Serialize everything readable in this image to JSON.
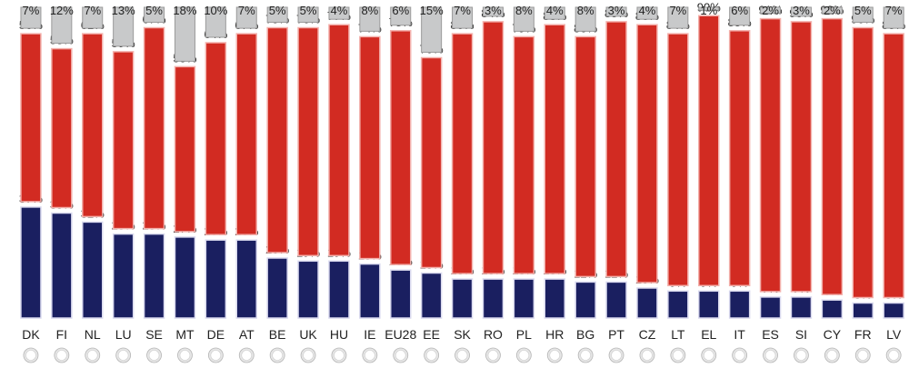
{
  "chart_data": {
    "type": "bar",
    "stacked": true,
    "categories": [
      "DK",
      "FI",
      "NL",
      "LU",
      "SE",
      "MT",
      "DE",
      "AT",
      "BE",
      "UK",
      "HU",
      "IE",
      "EU28",
      "EE",
      "SK",
      "RO",
      "PL",
      "HR",
      "BG",
      "PT",
      "CZ",
      "LT",
      "EL",
      "IT",
      "ES",
      "SI",
      "CY",
      "FR",
      "LV"
    ],
    "series": [
      {
        "color": "#1a1f60",
        "values": [
          37,
          35,
          32,
          28,
          28,
          27,
          26,
          26,
          20,
          19,
          19,
          18,
          16,
          15,
          13,
          13,
          13,
          13,
          12,
          12,
          10,
          9,
          9,
          9,
          7,
          7,
          6,
          5,
          5
        ]
      },
      {
        "color": "#d22b22",
        "values": [
          56,
          53,
          61,
          59,
          67,
          55,
          64,
          67,
          75,
          76,
          77,
          74,
          78,
          70,
          80,
          84,
          79,
          83,
          80,
          85,
          86,
          84,
          90,
          85,
          91,
          90,
          92,
          90,
          88
        ]
      },
      {
        "color": "#c8c9ca",
        "values": [
          7,
          12,
          7,
          13,
          5,
          18,
          10,
          7,
          5,
          5,
          4,
          8,
          6,
          15,
          7,
          3,
          8,
          4,
          8,
          3,
          4,
          7,
          1,
          6,
          2,
          3,
          2,
          5,
          7
        ]
      }
    ],
    "value_suffix": "%",
    "grid": false
  },
  "flag_icons": [
    "denmark-flag-icon",
    "finland-flag-icon",
    "netherlands-flag-icon",
    "luxembourg-flag-icon",
    "sweden-flag-icon",
    "malta-flag-icon",
    "germany-flag-icon",
    "austria-flag-icon",
    "belgium-flag-icon",
    "united-kingdom-flag-icon",
    "hungary-flag-icon",
    "ireland-flag-icon",
    "european-union-flag-icon",
    "estonia-flag-icon",
    "slovakia-flag-icon",
    "romania-flag-icon",
    "poland-flag-icon",
    "croatia-flag-icon",
    "bulgaria-flag-icon",
    "portugal-flag-icon",
    "czechia-flag-icon",
    "lithuania-flag-icon",
    "greece-flag-icon",
    "italy-flag-icon",
    "spain-flag-icon",
    "slovenia-flag-icon",
    "cyprus-flag-icon",
    "france-flag-icon",
    "latvia-flag-icon"
  ]
}
